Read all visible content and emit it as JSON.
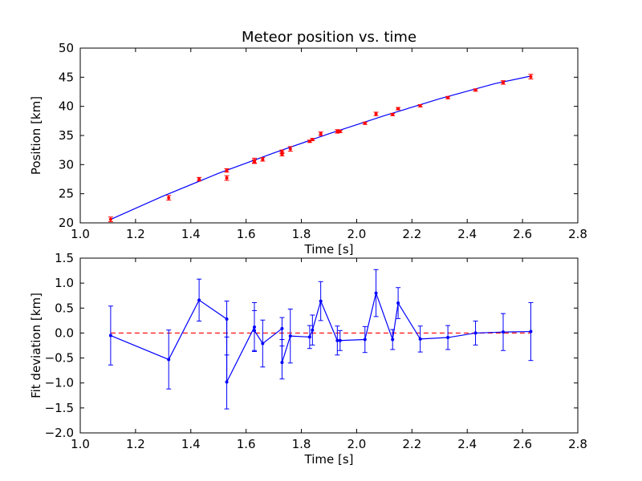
{
  "chart_data": [
    {
      "type": "scatter",
      "title": "Meteor position vs. time",
      "xlabel": "Time [s]",
      "ylabel": "Position [km]",
      "xlim": [
        1.0,
        2.8
      ],
      "ylim": [
        20,
        50
      ],
      "xticks": [
        "1.0",
        "1.2",
        "1.4",
        "1.6",
        "1.8",
        "2.0",
        "2.2",
        "2.4",
        "2.6",
        "2.8"
      ],
      "yticks": [
        "20",
        "25",
        "30",
        "35",
        "40",
        "45",
        "50"
      ],
      "grid": false,
      "colors": {
        "points": "#ff0000",
        "fit": "#0000ff",
        "errorbars": "#ff0000"
      },
      "points": {
        "x": [
          1.11,
          1.32,
          1.43,
          1.53,
          1.53,
          1.63,
          1.63,
          1.66,
          1.73,
          1.73,
          1.76,
          1.83,
          1.84,
          1.87,
          1.93,
          1.94,
          2.03,
          2.07,
          2.13,
          2.15,
          2.23,
          2.33,
          2.43,
          2.53,
          2.63
        ],
        "y": [
          20.6,
          24.3,
          27.5,
          29.0,
          27.7,
          30.7,
          30.5,
          30.9,
          32.2,
          31.8,
          32.7,
          34.0,
          34.3,
          35.3,
          35.7,
          35.7,
          37.1,
          38.7,
          38.6,
          39.6,
          40.1,
          41.5,
          42.8,
          44.1,
          45.1
        ],
        "yerr": [
          0.4,
          0.4,
          0.3,
          0.3,
          0.4,
          0.4,
          0.3,
          0.3,
          0.3,
          0.3,
          0.4,
          0.2,
          0.2,
          0.3,
          0.3,
          0.2,
          0.2,
          0.3,
          0.2,
          0.2,
          0.2,
          0.2,
          0.2,
          0.3,
          0.4
        ]
      },
      "fit_line": {
        "x": [
          1.11,
          1.3,
          1.5,
          1.7,
          1.9,
          2.1,
          2.3,
          2.5,
          2.63
        ],
        "y": [
          20.6,
          24.6,
          28.5,
          32.0,
          35.3,
          38.4,
          41.3,
          43.9,
          45.2
        ]
      }
    },
    {
      "type": "line",
      "title": "",
      "xlabel": "Time [s]",
      "ylabel": "Fit deviation [km]",
      "xlim": [
        1.0,
        2.8
      ],
      "ylim": [
        -2.0,
        1.5
      ],
      "xticks": [
        "1.0",
        "1.2",
        "1.4",
        "1.6",
        "1.8",
        "2.0",
        "2.2",
        "2.4",
        "2.6",
        "2.8"
      ],
      "yticks": [
        "−2.0",
        "−1.5",
        "−1.0",
        "−0.5",
        "0.0",
        "0.5",
        "1.0",
        "1.5"
      ],
      "grid": false,
      "colors": {
        "series": "#0000ff",
        "reference": "#ff0000"
      },
      "reference_line_y": 0.0,
      "series": [
        {
          "x": [
            1.11,
            1.32,
            1.43,
            1.53,
            1.53,
            1.63,
            1.63,
            1.66,
            1.73,
            1.73,
            1.76,
            1.83,
            1.84,
            1.87,
            1.93,
            1.94,
            2.03,
            2.07,
            2.13,
            2.15,
            2.23,
            2.33,
            2.43,
            2.53,
            2.63
          ],
          "y": [
            -0.05,
            -0.53,
            0.66,
            0.28,
            -0.98,
            0.12,
            0.05,
            -0.21,
            0.09,
            -0.59,
            -0.06,
            -0.08,
            0.06,
            0.64,
            -0.15,
            -0.15,
            -0.13,
            0.8,
            -0.13,
            0.6,
            -0.12,
            -0.09,
            0.0,
            0.02,
            0.03
          ],
          "yerr": [
            0.59,
            0.59,
            0.42,
            0.36,
            0.54,
            0.49,
            0.4,
            0.47,
            0.22,
            0.33,
            0.54,
            0.23,
            0.3,
            0.39,
            0.29,
            0.2,
            0.26,
            0.47,
            0.2,
            0.31,
            0.26,
            0.24,
            0.24,
            0.37,
            0.58
          ]
        }
      ]
    }
  ]
}
